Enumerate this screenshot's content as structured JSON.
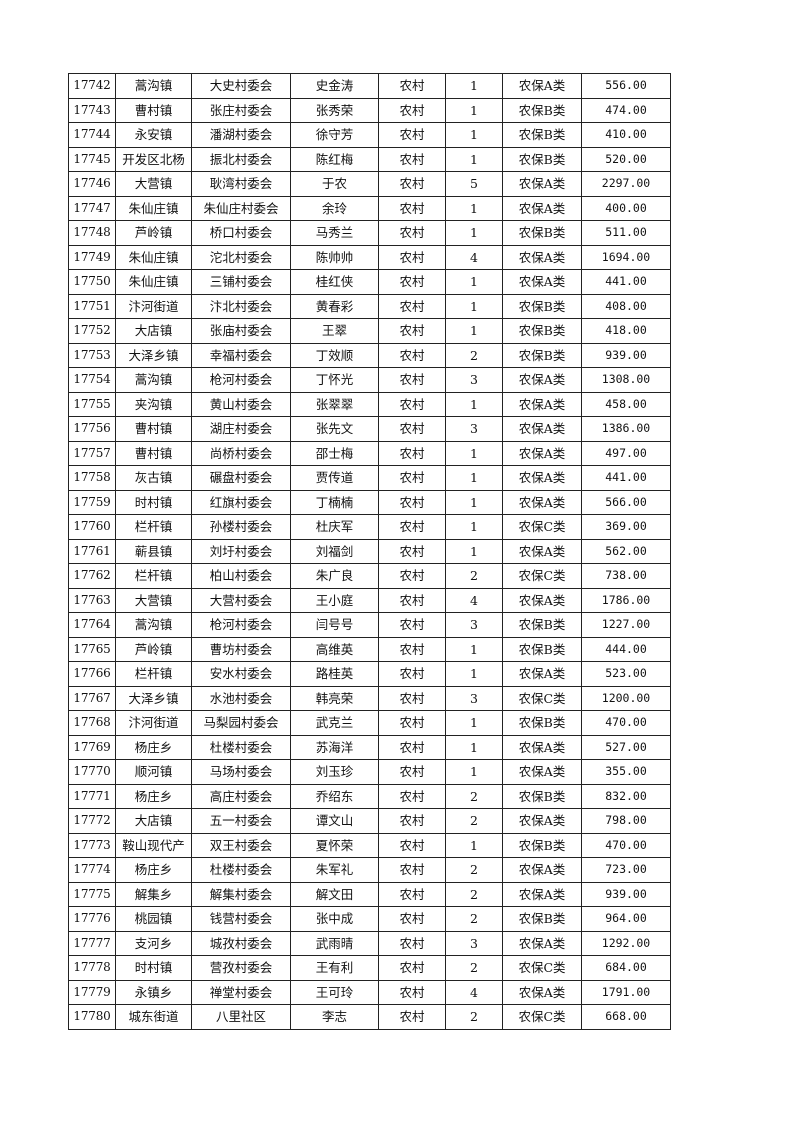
{
  "table": {
    "rows": [
      [
        "17742",
        "蒿沟镇",
        "大史村委会",
        "史金涛",
        "农村",
        "1",
        "农保A类",
        "556.00"
      ],
      [
        "17743",
        "曹村镇",
        "张庄村委会",
        "张秀荣",
        "农村",
        "1",
        "农保B类",
        "474.00"
      ],
      [
        "17744",
        "永安镇",
        "潘湖村委会",
        "徐守芳",
        "农村",
        "1",
        "农保B类",
        "410.00"
      ],
      [
        "17745",
        "开发区北杨",
        "振北村委会",
        "陈红梅",
        "农村",
        "1",
        "农保B类",
        "520.00"
      ],
      [
        "17746",
        "大营镇",
        "耿湾村委会",
        "于农",
        "农村",
        "5",
        "农保A类",
        "2297.00"
      ],
      [
        "17747",
        "朱仙庄镇",
        "朱仙庄村委会",
        "余玲",
        "农村",
        "1",
        "农保A类",
        "400.00"
      ],
      [
        "17748",
        "芦岭镇",
        "桥口村委会",
        "马秀兰",
        "农村",
        "1",
        "农保B类",
        "511.00"
      ],
      [
        "17749",
        "朱仙庄镇",
        "沱北村委会",
        "陈帅帅",
        "农村",
        "4",
        "农保A类",
        "1694.00"
      ],
      [
        "17750",
        "朱仙庄镇",
        "三铺村委会",
        "桂红侠",
        "农村",
        "1",
        "农保A类",
        "441.00"
      ],
      [
        "17751",
        "汴河街道",
        "汴北村委会",
        "黄春彩",
        "农村",
        "1",
        "农保B类",
        "408.00"
      ],
      [
        "17752",
        "大店镇",
        "张庙村委会",
        "王翠",
        "农村",
        "1",
        "农保B类",
        "418.00"
      ],
      [
        "17753",
        "大泽乡镇",
        "幸福村委会",
        "丁效顺",
        "农村",
        "2",
        "农保B类",
        "939.00"
      ],
      [
        "17754",
        "蒿沟镇",
        "枪河村委会",
        "丁怀光",
        "农村",
        "3",
        "农保A类",
        "1308.00"
      ],
      [
        "17755",
        "夹沟镇",
        "黄山村委会",
        "张翠翠",
        "农村",
        "1",
        "农保A类",
        "458.00"
      ],
      [
        "17756",
        "曹村镇",
        "湖庄村委会",
        "张先文",
        "农村",
        "3",
        "农保A类",
        "1386.00"
      ],
      [
        "17757",
        "曹村镇",
        "尚桥村委会",
        "邵士梅",
        "农村",
        "1",
        "农保A类",
        "497.00"
      ],
      [
        "17758",
        "灰古镇",
        "碾盘村委会",
        "贾传道",
        "农村",
        "1",
        "农保A类",
        "441.00"
      ],
      [
        "17759",
        "时村镇",
        "红旗村委会",
        "丁楠楠",
        "农村",
        "1",
        "农保A类",
        "566.00"
      ],
      [
        "17760",
        "栏杆镇",
        "孙楼村委会",
        "杜庆军",
        "农村",
        "1",
        "农保C类",
        "369.00"
      ],
      [
        "17761",
        "蕲县镇",
        "刘圩村委会",
        "刘福剑",
        "农村",
        "1",
        "农保A类",
        "562.00"
      ],
      [
        "17762",
        "栏杆镇",
        "柏山村委会",
        "朱广良",
        "农村",
        "2",
        "农保C类",
        "738.00"
      ],
      [
        "17763",
        "大营镇",
        "大营村委会",
        "王小庭",
        "农村",
        "4",
        "农保A类",
        "1786.00"
      ],
      [
        "17764",
        "蒿沟镇",
        "枪河村委会",
        "闫号号",
        "农村",
        "3",
        "农保B类",
        "1227.00"
      ],
      [
        "17765",
        "芦岭镇",
        "曹坊村委会",
        "高维英",
        "农村",
        "1",
        "农保B类",
        "444.00"
      ],
      [
        "17766",
        "栏杆镇",
        "安水村委会",
        "路桂英",
        "农村",
        "1",
        "农保A类",
        "523.00"
      ],
      [
        "17767",
        "大泽乡镇",
        "水池村委会",
        "韩亮荣",
        "农村",
        "3",
        "农保C类",
        "1200.00"
      ],
      [
        "17768",
        "汴河街道",
        "马梨园村委会",
        "武克兰",
        "农村",
        "1",
        "农保B类",
        "470.00"
      ],
      [
        "17769",
        "杨庄乡",
        "杜楼村委会",
        "苏海洋",
        "农村",
        "1",
        "农保A类",
        "527.00"
      ],
      [
        "17770",
        "顺河镇",
        "马场村委会",
        "刘玉珍",
        "农村",
        "1",
        "农保A类",
        "355.00"
      ],
      [
        "17771",
        "杨庄乡",
        "高庄村委会",
        "乔绍东",
        "农村",
        "2",
        "农保B类",
        "832.00"
      ],
      [
        "17772",
        "大店镇",
        "五一村委会",
        "谭文山",
        "农村",
        "2",
        "农保A类",
        "798.00"
      ],
      [
        "17773",
        "鞍山现代产",
        "双王村委会",
        "夏怀荣",
        "农村",
        "1",
        "农保B类",
        "470.00"
      ],
      [
        "17774",
        "杨庄乡",
        "杜楼村委会",
        "朱军礼",
        "农村",
        "2",
        "农保A类",
        "723.00"
      ],
      [
        "17775",
        "解集乡",
        "解集村委会",
        "解文田",
        "农村",
        "2",
        "农保A类",
        "939.00"
      ],
      [
        "17776",
        "桃园镇",
        "钱营村委会",
        "张中成",
        "农村",
        "2",
        "农保B类",
        "964.00"
      ],
      [
        "17777",
        "支河乡",
        "城孜村委会",
        "武雨晴",
        "农村",
        "3",
        "农保A类",
        "1292.00"
      ],
      [
        "17778",
        "时村镇",
        "营孜村委会",
        "王有利",
        "农村",
        "2",
        "农保C类",
        "684.00"
      ],
      [
        "17779",
        "永镇乡",
        "禅堂村委会",
        "王可玲",
        "农村",
        "4",
        "农保A类",
        "1791.00"
      ],
      [
        "17780",
        "城东街道",
        "八里社区",
        "李志",
        "农村",
        "2",
        "农保C类",
        "668.00"
      ]
    ]
  }
}
